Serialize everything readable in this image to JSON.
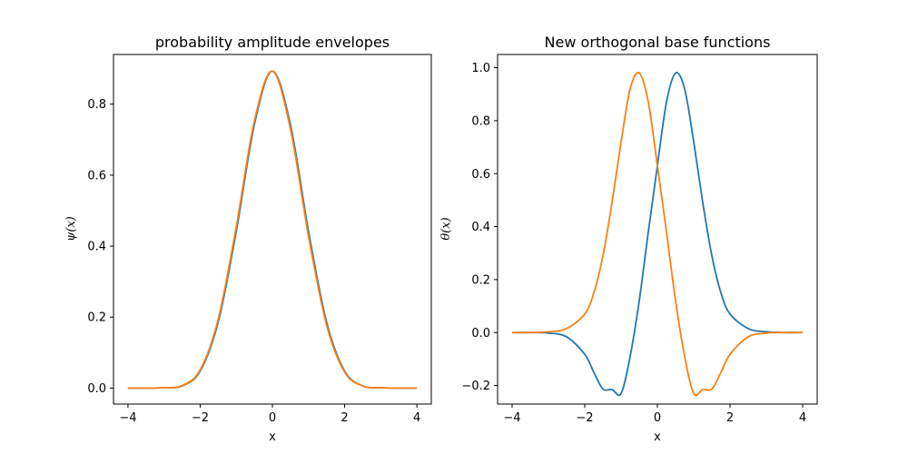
{
  "chart_data": [
    {
      "type": "line",
      "title": "probability amplitude envelopes",
      "xlabel": "x",
      "ylabel": "ψ(x)",
      "xlim": [
        -4.4,
        4.4
      ],
      "ylim": [
        -0.045,
        0.94
      ],
      "xticks": [
        "−4",
        "−2",
        "0",
        "2",
        "4"
      ],
      "xtick_values": [
        -4,
        -2,
        0,
        2,
        4
      ],
      "yticks": [
        "0.0",
        "0.2",
        "0.4",
        "0.6",
        "0.8"
      ],
      "ytick_values": [
        0.0,
        0.2,
        0.4,
        0.6,
        0.8
      ],
      "grid": false,
      "x": [
        -4.0,
        -3.5,
        -3.0,
        -2.5,
        -2.0,
        -1.5,
        -1.0,
        -0.5,
        0.0,
        0.5,
        1.0,
        1.5,
        2.0,
        2.5,
        3.0,
        3.5,
        4.0
      ],
      "series": [
        {
          "color": "#1f77b4",
          "values": [
            0.0,
            0.0,
            0.001,
            0.006,
            0.048,
            0.186,
            0.442,
            0.742,
            0.893,
            0.742,
            0.442,
            0.186,
            0.048,
            0.006,
            0.001,
            0.0,
            0.0
          ]
        },
        {
          "color": "#ff7f0e",
          "values": [
            0.0,
            0.0,
            0.001,
            0.007,
            0.051,
            0.194,
            0.455,
            0.752,
            0.893,
            0.73,
            0.428,
            0.178,
            0.045,
            0.006,
            0.001,
            0.0,
            0.0
          ]
        }
      ]
    },
    {
      "type": "line",
      "title": "New orthogonal base functions",
      "xlabel": "x",
      "ylabel": "θ(x)",
      "xlim": [
        -4.4,
        4.4
      ],
      "ylim": [
        -0.27,
        1.05
      ],
      "xticks": [
        "−4",
        "−2",
        "0",
        "2",
        "4"
      ],
      "xtick_values": [
        -4,
        -2,
        0,
        2,
        4
      ],
      "yticks": [
        "−0.2",
        "0.0",
        "0.2",
        "0.4",
        "0.6",
        "0.8",
        "1.0"
      ],
      "ytick_values": [
        -0.2,
        0.0,
        0.2,
        0.4,
        0.6,
        0.8,
        1.0
      ],
      "grid": false,
      "x": [
        -4.0,
        -3.5,
        -3.0,
        -2.5,
        -2.0,
        -1.75,
        -1.5,
        -1.25,
        -1.0,
        -0.75,
        -0.5,
        -0.25,
        0.0,
        0.25,
        0.5,
        0.75,
        1.0,
        1.25,
        1.5,
        1.75,
        2.0,
        2.5,
        3.0,
        3.5,
        4.0
      ],
      "series": [
        {
          "color": "#1f77b4",
          "values": [
            0.0,
            0.0,
            -0.002,
            -0.016,
            -0.082,
            -0.15,
            -0.213,
            -0.215,
            -0.23,
            -0.09,
            0.12,
            0.38,
            0.63,
            0.87,
            0.98,
            0.92,
            0.72,
            0.49,
            0.29,
            0.15,
            0.07,
            0.015,
            0.003,
            0.0,
            0.0
          ]
        },
        {
          "color": "#ff7f0e",
          "values": [
            0.0,
            0.0,
            0.003,
            0.015,
            0.07,
            0.15,
            0.29,
            0.49,
            0.72,
            0.92,
            0.98,
            0.87,
            0.63,
            0.38,
            0.12,
            -0.09,
            -0.23,
            -0.215,
            -0.213,
            -0.15,
            -0.082,
            -0.016,
            -0.002,
            0.0,
            0.0
          ]
        }
      ]
    }
  ]
}
